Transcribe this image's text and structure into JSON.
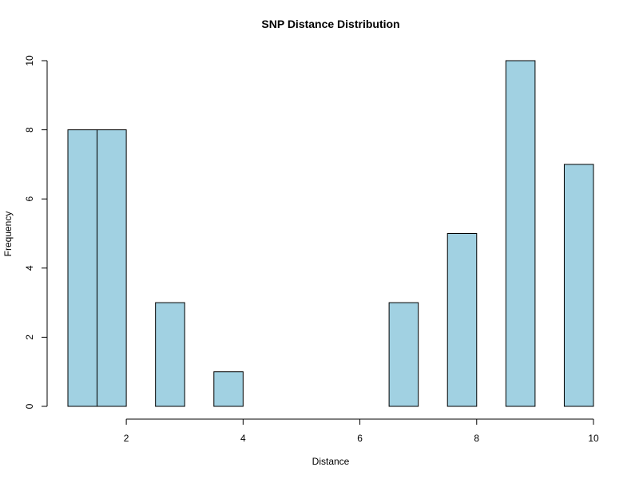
{
  "chart_data": {
    "type": "bar",
    "title": "SNP Distance Distribution",
    "xlabel": "Distance",
    "ylabel": "Frequency",
    "bin_width": 0.5,
    "bins": [
      {
        "start": 1.0,
        "end": 1.5,
        "value": 8
      },
      {
        "start": 1.5,
        "end": 2.0,
        "value": 8
      },
      {
        "start": 2.0,
        "end": 2.5,
        "value": 0
      },
      {
        "start": 2.5,
        "end": 3.0,
        "value": 3
      },
      {
        "start": 3.0,
        "end": 3.5,
        "value": 0
      },
      {
        "start": 3.5,
        "end": 4.0,
        "value": 1
      },
      {
        "start": 4.0,
        "end": 4.5,
        "value": 0
      },
      {
        "start": 4.5,
        "end": 5.0,
        "value": 0
      },
      {
        "start": 5.0,
        "end": 5.5,
        "value": 0
      },
      {
        "start": 5.5,
        "end": 6.0,
        "value": 0
      },
      {
        "start": 6.0,
        "end": 6.5,
        "value": 0
      },
      {
        "start": 6.5,
        "end": 7.0,
        "value": 3
      },
      {
        "start": 7.0,
        "end": 7.5,
        "value": 0
      },
      {
        "start": 7.5,
        "end": 8.0,
        "value": 5
      },
      {
        "start": 8.0,
        "end": 8.5,
        "value": 0
      },
      {
        "start": 8.5,
        "end": 9.0,
        "value": 10
      },
      {
        "start": 9.0,
        "end": 9.5,
        "value": 0
      },
      {
        "start": 9.5,
        "end": 10.0,
        "value": 7
      }
    ],
    "xlim": [
      1,
      10
    ],
    "ylim": [
      0,
      10
    ],
    "xticks": [
      "2",
      "4",
      "6",
      "8",
      "10"
    ],
    "yticks": [
      "0",
      "2",
      "4",
      "6",
      "8",
      "10"
    ],
    "bar_color": "#a1d1e2",
    "grid": false
  }
}
